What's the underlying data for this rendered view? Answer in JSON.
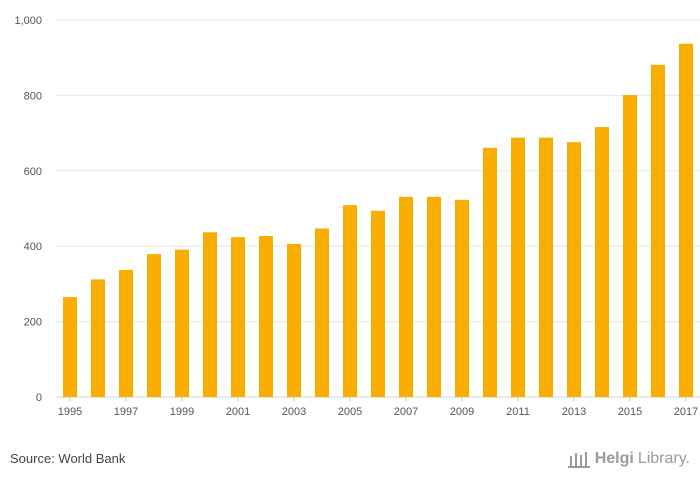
{
  "chart_data": {
    "type": "bar",
    "categories": [
      "1995",
      "1996",
      "1997",
      "1998",
      "1999",
      "2000",
      "2001",
      "2002",
      "2003",
      "2004",
      "2005",
      "2006",
      "2007",
      "2008",
      "2009",
      "2010",
      "2011",
      "2012",
      "2013",
      "2014",
      "2015",
      "2016",
      "2017"
    ],
    "values": [
      265,
      312,
      337,
      379,
      391,
      437,
      424,
      427,
      406,
      447,
      509,
      494,
      531,
      531,
      523,
      661,
      688,
      688,
      676,
      716,
      801,
      881,
      937
    ],
    "x_tick_labels": [
      "1995",
      "1997",
      "1999",
      "2001",
      "2003",
      "2005",
      "2007",
      "2009",
      "2011",
      "2013",
      "2015",
      "2017"
    ],
    "y_tick_labels": [
      "0",
      "200",
      "400",
      "600",
      "800",
      "1,000"
    ],
    "ylim": [
      0,
      1000
    ],
    "grid": true,
    "bar_color": "#f7ae00",
    "title": "",
    "xlabel": "",
    "ylabel": ""
  },
  "footer": {
    "source": "Source: World Bank",
    "brand_bold": "Helgi",
    "brand_regular": "Library."
  },
  "colors": {
    "grid": "#e6e6e6",
    "axis": "#cccccc",
    "text": "#555555"
  }
}
